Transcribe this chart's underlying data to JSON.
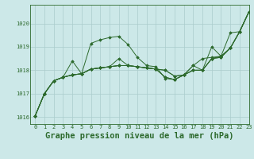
{
  "background_color": "#cce8e8",
  "grid_color": "#aacccc",
  "line_color": "#2d6a2d",
  "title": "Graphe pression niveau de la mer (hPa)",
  "title_fontsize": 7.5,
  "xlim": [
    -0.5,
    23
  ],
  "ylim": [
    1015.7,
    1020.8
  ],
  "yticks": [
    1016,
    1017,
    1018,
    1019,
    1020
  ],
  "xticks": [
    0,
    1,
    2,
    3,
    4,
    5,
    6,
    7,
    8,
    9,
    10,
    11,
    12,
    13,
    14,
    15,
    16,
    17,
    18,
    19,
    20,
    21,
    22,
    23
  ],
  "series": [
    [
      1016.05,
      1017.0,
      1017.55,
      1017.7,
      1017.8,
      1017.85,
      1019.15,
      1019.3,
      1019.4,
      1019.45,
      1019.1,
      1018.55,
      1018.2,
      1018.15,
      1017.65,
      1017.6,
      1017.8,
      1018.2,
      1018.0,
      1019.0,
      1018.6,
      1019.6,
      1019.65,
      1020.5
    ],
    [
      1016.05,
      1017.0,
      1017.55,
      1017.7,
      1018.4,
      1017.85,
      1018.05,
      1018.1,
      1018.15,
      1018.5,
      1018.2,
      1018.15,
      1018.1,
      1018.05,
      1018.0,
      1017.75,
      1017.8,
      1018.2,
      1018.5,
      1018.55,
      1018.6,
      1018.95,
      1019.65,
      1020.5
    ],
    [
      1016.05,
      1017.0,
      1017.55,
      1017.7,
      1017.8,
      1017.85,
      1018.05,
      1018.1,
      1018.15,
      1018.2,
      1018.2,
      1018.15,
      1018.1,
      1018.05,
      1018.0,
      1017.75,
      1017.8,
      1018.0,
      1018.0,
      1018.5,
      1018.55,
      1018.95,
      1019.65,
      1020.5
    ],
    [
      1016.05,
      1017.0,
      1017.55,
      1017.7,
      1017.8,
      1017.85,
      1018.05,
      1018.1,
      1018.15,
      1018.2,
      1018.2,
      1018.15,
      1018.1,
      1018.05,
      1017.7,
      1017.6,
      1017.8,
      1018.0,
      1018.0,
      1018.5,
      1018.55,
      1018.95,
      1019.65,
      1020.5
    ],
    [
      1016.05,
      1017.0,
      1017.55,
      1017.7,
      1017.8,
      1017.85,
      1018.05,
      1018.1,
      1018.15,
      1018.2,
      1018.2,
      1018.15,
      1018.1,
      1018.05,
      1017.7,
      1017.6,
      1017.8,
      1018.0,
      1018.0,
      1018.5,
      1018.6,
      1018.95,
      1019.65,
      1020.5
    ]
  ]
}
